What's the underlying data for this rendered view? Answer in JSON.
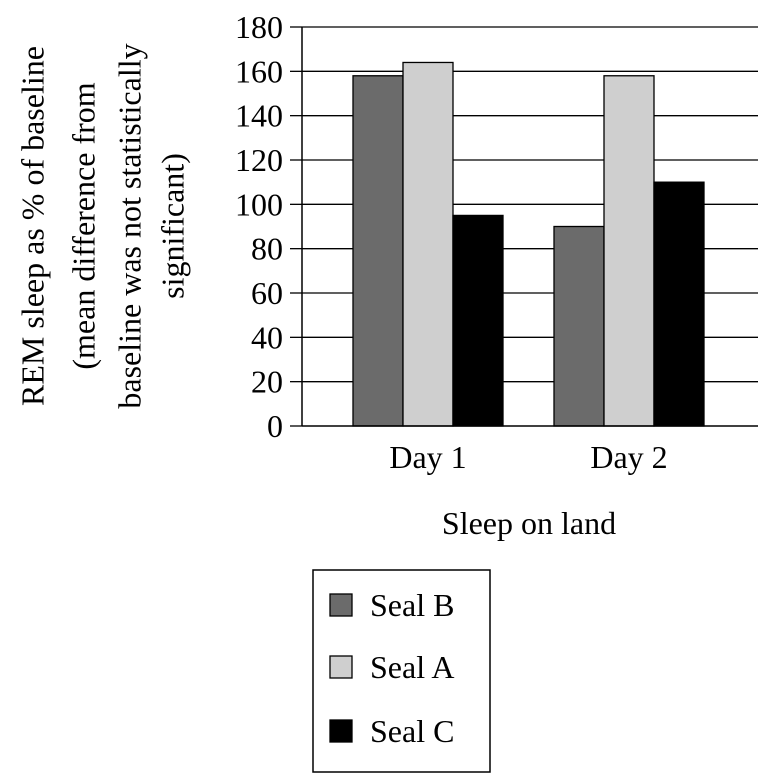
{
  "chart_data": {
    "type": "bar",
    "categories": [
      "Day 1",
      "Day 2"
    ],
    "series": [
      {
        "name": "Seal B",
        "values": [
          158,
          90
        ],
        "color": "#6b6b6b"
      },
      {
        "name": "Seal A",
        "values": [
          164,
          158
        ],
        "color": "#cfcfcf"
      },
      {
        "name": "Seal C",
        "values": [
          95,
          110
        ],
        "color": "#000000"
      }
    ],
    "xlabel": "Sleep on land",
    "ylabel_lines": [
      "REM sleep as % of baseline",
      "(mean difference from",
      "baseline was not statistically",
      "significant)"
    ],
    "ylim": [
      0,
      180
    ],
    "yticks": [
      0,
      20,
      40,
      60,
      80,
      100,
      120,
      140,
      160,
      180
    ],
    "grid": true,
    "legend_position": "bottom"
  }
}
